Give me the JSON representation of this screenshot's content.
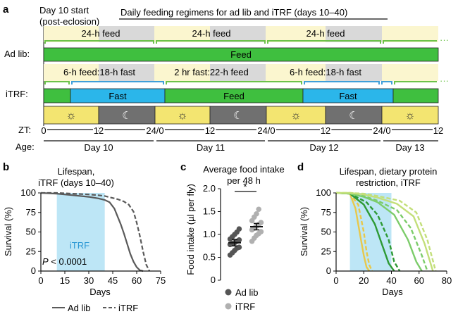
{
  "colors": {
    "feed_green": "#3fbf3f",
    "fast_blue": "#2bb6ea",
    "light_yellow": "#fbf6cf",
    "day_yellow": "#f3e571",
    "night_gray": "#707070",
    "shade_gray": "#d9d9d9",
    "bracket_green": "#6cc24a",
    "bracket_blue": "#3f9fd9",
    "itrf_window": "#bde6f6",
    "survival_adlib": "#5a5a5a",
    "survival_itrf": "#5a5a5a",
    "dot_adlib": "#555555",
    "dot_itrf": "#b0b0b0"
  },
  "panel_a": {
    "label": "a",
    "day10_start_line1": "Day 10 start",
    "day10_start_line2": "(post-eclosion)",
    "header": "Daily feeding regimens for ad lib and iTRF (days 10–40)",
    "feed24": [
      "24-h feed",
      "24-h feed",
      "24-h feed"
    ],
    "adlib_label": "Ad lib:",
    "adlib_bar": "Feed",
    "itrf_labels": [
      "6-h feed:18-h fast",
      "2 hr fast:22-h feed",
      "6-h feed:18-h fast"
    ],
    "itrf_label": "iTRF:",
    "itrf_segments": [
      "Fast",
      "Feed",
      "Fast"
    ],
    "sun_icon": "☼",
    "moon_icon": "☾",
    "zt_label": "ZT:",
    "zt_ticks": [
      "0",
      "12",
      "24/0",
      "12",
      "24/0",
      "12",
      "24/0",
      "12"
    ],
    "age_label": "Age:",
    "days": [
      "Day 10",
      "Day 11",
      "Day 12",
      "Day 13"
    ]
  },
  "panel_b": {
    "label": "b",
    "title_line1": "Lifespan,",
    "title_line2": "iTRF (days 10–40)",
    "ylabel": "Survival (%)",
    "xlabel": "Days",
    "window_label": "iTRF",
    "pvalue_p": "P",
    "pvalue_rest": " < 0.0001",
    "yticks": [
      "0",
      "25",
      "50",
      "75",
      "100"
    ],
    "xticks": [
      "0",
      "15",
      "30",
      "45",
      "60",
      "75"
    ],
    "legend_adlib": "Ad lib",
    "legend_itrf": "iTRF"
  },
  "panel_c": {
    "label": "c",
    "title_line1": "Average food intake",
    "title_line2": "per 48 h",
    "ylabel": "Food intake (µl per fly)",
    "yticks": [
      "0",
      "0.5",
      "1.0",
      "1.5",
      "2.0"
    ],
    "significance": "*",
    "legend_adlib": "Ad lib",
    "legend_itrf": "iTRF"
  },
  "panel_d": {
    "label": "d",
    "title_line1": "Lifespan, dietary protein",
    "title_line2": "restriction, iTRF",
    "ylabel": "Survival (%)",
    "xlabel": "Days",
    "yticks": [
      "0",
      "25",
      "50",
      "75",
      "100"
    ],
    "xticks": [
      "0",
      "20",
      "40",
      "60",
      "80"
    ]
  },
  "chart_data": [
    {
      "type": "line",
      "panel": "b",
      "xlabel": "Days",
      "ylabel": "Survival (%)",
      "xlim": [
        0,
        75
      ],
      "ylim": [
        0,
        100
      ],
      "shaded_window": [
        10,
        40
      ],
      "series": [
        {
          "name": "Ad lib",
          "style": "solid",
          "x": [
            0,
            10,
            20,
            30,
            36,
            40,
            43,
            46,
            48,
            50,
            52,
            54,
            56,
            58,
            60,
            62,
            64
          ],
          "y": [
            100,
            99,
            97,
            95,
            93,
            91,
            88,
            80,
            70,
            60,
            48,
            35,
            22,
            12,
            5,
            1,
            0
          ]
        },
        {
          "name": "iTRF",
          "style": "dashed",
          "x": [
            0,
            10,
            20,
            30,
            36,
            40,
            44,
            48,
            52,
            55,
            58,
            60,
            62,
            64,
            66,
            68
          ],
          "y": [
            100,
            100,
            99,
            98,
            97,
            96,
            94,
            92,
            89,
            85,
            76,
            62,
            45,
            25,
            8,
            0
          ]
        }
      ],
      "annotation": "P < 0.0001"
    },
    {
      "type": "scatter",
      "panel": "c",
      "ylabel": "Food intake (µl per fly)",
      "ylim": [
        0,
        2.0
      ],
      "significance": "*",
      "series": [
        {
          "name": "Ad lib",
          "mean": 0.82,
          "sem": 0.07,
          "values": [
            0.55,
            0.6,
            0.65,
            0.7,
            0.72,
            0.78,
            0.8,
            0.82,
            0.85,
            0.88,
            0.9,
            0.95,
            1.0,
            1.05,
            1.12
          ]
        },
        {
          "name": "iTRF",
          "mean": 1.17,
          "sem": 0.07,
          "values": [
            0.85,
            0.92,
            0.98,
            1.02,
            1.06,
            1.1,
            1.14,
            1.18,
            1.22,
            1.26,
            1.3,
            1.38,
            1.45,
            1.55
          ]
        }
      ]
    },
    {
      "type": "line",
      "panel": "d",
      "xlabel": "Days",
      "ylabel": "Survival (%)",
      "xlim": [
        0,
        80
      ],
      "ylim": [
        0,
        100
      ],
      "shaded_window": [
        10,
        40
      ],
      "series": [
        {
          "color": "#e8c84a",
          "style": "solid",
          "x": [
            0,
            10,
            14,
            18,
            20,
            22,
            24
          ],
          "y": [
            100,
            99,
            80,
            40,
            20,
            5,
            0
          ]
        },
        {
          "color": "#e8c84a",
          "style": "dashed",
          "x": [
            0,
            10,
            16,
            20,
            22,
            24,
            26
          ],
          "y": [
            100,
            99,
            85,
            50,
            25,
            8,
            0
          ]
        },
        {
          "color": "#2e9a35",
          "style": "solid",
          "x": [
            0,
            10,
            20,
            28,
            34,
            38,
            42
          ],
          "y": [
            100,
            99,
            85,
            60,
            30,
            10,
            0
          ]
        },
        {
          "color": "#2e9a35",
          "style": "dashed",
          "x": [
            0,
            10,
            22,
            30,
            38,
            42,
            46
          ],
          "y": [
            100,
            99,
            88,
            72,
            40,
            12,
            0
          ]
        },
        {
          "color": "#7ccc6a",
          "style": "solid",
          "x": [
            0,
            10,
            20,
            30,
            42,
            52,
            58,
            62
          ],
          "y": [
            100,
            99,
            95,
            88,
            72,
            40,
            12,
            0
          ]
        },
        {
          "color": "#7ccc6a",
          "style": "dashed",
          "x": [
            0,
            10,
            20,
            30,
            44,
            54,
            62,
            66
          ],
          "y": [
            100,
            99,
            96,
            90,
            78,
            55,
            20,
            0
          ]
        },
        {
          "color": "#c3df7a",
          "style": "solid",
          "x": [
            0,
            10,
            20,
            30,
            44,
            56,
            64,
            70
          ],
          "y": [
            100,
            100,
            98,
            94,
            86,
            70,
            35,
            0
          ]
        },
        {
          "color": "#c3df7a",
          "style": "dashed",
          "x": [
            0,
            10,
            20,
            30,
            46,
            58,
            66,
            72
          ],
          "y": [
            100,
            100,
            99,
            96,
            90,
            75,
            40,
            0
          ]
        }
      ]
    }
  ]
}
